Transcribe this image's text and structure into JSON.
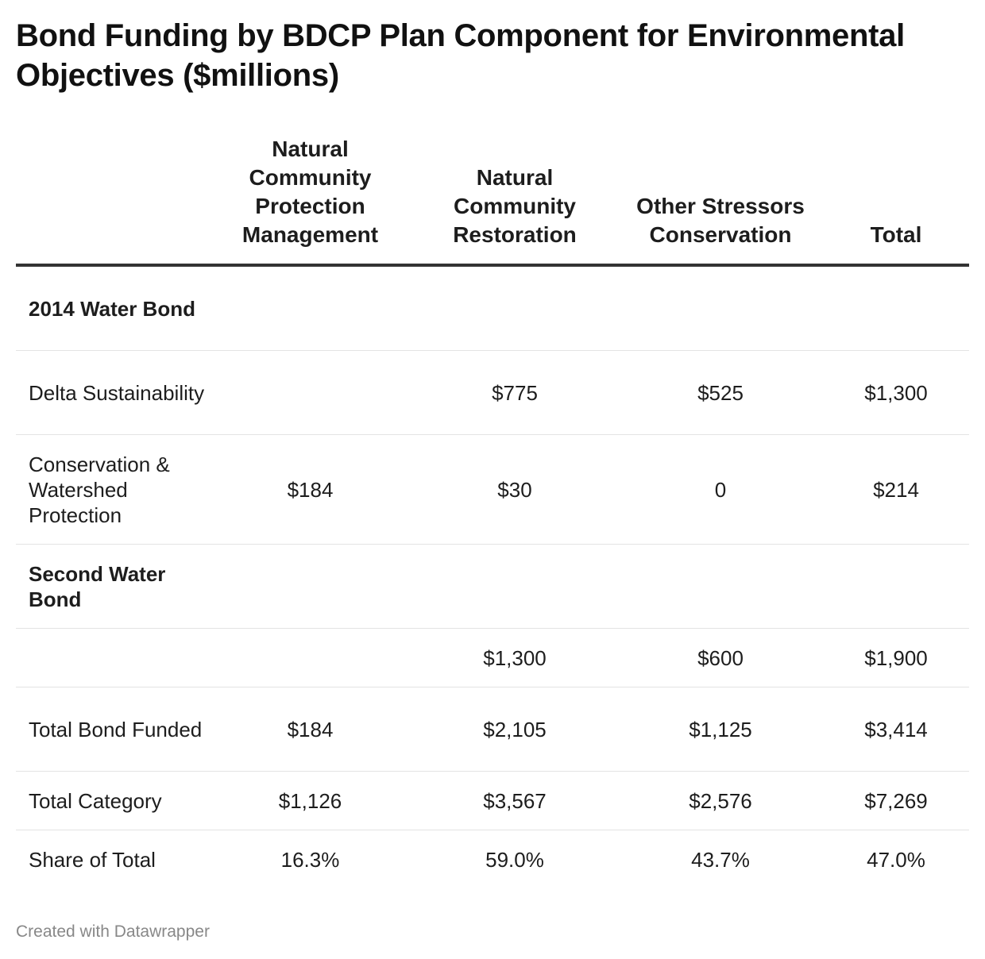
{
  "chart_data": {
    "type": "table",
    "title": "Bond Funding by BDCP Plan Component for Environmental Objectives ($millions)",
    "columns": [
      "",
      "Natural Community Protection Management",
      "Natural Community Restoration",
      "Other Stressors Conservation",
      "Total"
    ],
    "rows": [
      {
        "label": "2014 Water Bond",
        "group_header": true,
        "cells": [
          "",
          "",
          "",
          ""
        ]
      },
      {
        "label": "Delta Sustainability",
        "cells": [
          "",
          "$775",
          "$525",
          "$1,300"
        ]
      },
      {
        "label": "Conservation & Watershed Protection",
        "cells": [
          "$184",
          "$30",
          "0",
          "$214"
        ]
      },
      {
        "label": "Second Water Bond",
        "group_header": true,
        "cells": [
          "",
          "",
          "",
          ""
        ]
      },
      {
        "label": "",
        "cells": [
          "",
          "$1,300",
          "$600",
          "$1,900"
        ]
      },
      {
        "label": "Total Bond Funded",
        "cells": [
          "$184",
          "$2,105",
          "$1,125",
          "$3,414"
        ]
      },
      {
        "label": "Total Category",
        "cells": [
          "$1,126",
          "$3,567",
          "$2,576",
          "$7,269"
        ]
      },
      {
        "label": "Share of Total",
        "cells": [
          "16.3%",
          "59.0%",
          "43.7%",
          "47.0%"
        ]
      }
    ]
  },
  "footer": {
    "credit": "Created with Datawrapper"
  },
  "colors": {
    "text": "#1d1d1d",
    "header_rule": "#333333",
    "row_rule": "#e3e3e3",
    "credit": "#888888"
  }
}
